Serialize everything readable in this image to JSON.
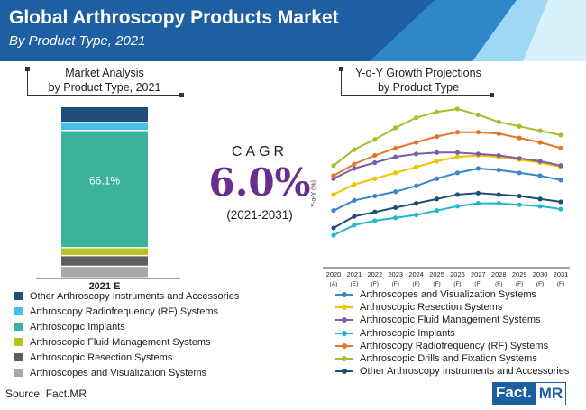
{
  "header": {
    "title": "Global Arthroscopy Products Market",
    "subtitle": "By Product Type, 2021"
  },
  "left_panel": {
    "title_line1": "Market Analysis",
    "title_line2": "by Product Type, 2021"
  },
  "cagr": {
    "label": "CAGR",
    "value": "6.0%",
    "period": "(2021-2031)"
  },
  "right_panel": {
    "title_line1": "Y-o-Y Growth Projections",
    "title_line2": "by Product Type"
  },
  "chart_data": [
    {
      "type": "bar",
      "stacked": true,
      "categories": [
        "2021 E"
      ],
      "value_label": "66.1%",
      "series": [
        {
          "name": "Arthroscopes and Visualization Systems",
          "color": "#a9a9a9",
          "values": [
            6.5
          ]
        },
        {
          "name": "Arthroscopic Resection Systems",
          "color": "#5e5e5e",
          "values": [
            6.0
          ]
        },
        {
          "name": "Arthroscopic Fluid Management Systems",
          "color": "#b8c41e",
          "values": [
            4.5
          ]
        },
        {
          "name": "Arthroscopic Implants",
          "color": "#3ab39a",
          "values": [
            66.1
          ]
        },
        {
          "name": "Arthroscopy Radiofrequency (RF) Systems",
          "color": "#45c0e8",
          "values": [
            4.5
          ]
        },
        {
          "name": "Other Arthroscopy Instruments and Accessories",
          "color": "#1f4e79",
          "values": [
            9.0
          ]
        }
      ],
      "legend_placement": "bottom"
    },
    {
      "type": "line",
      "ylabel": "Y-o-Y (%)",
      "x": [
        {
          "year": "2020",
          "tag": "(A)"
        },
        {
          "year": "2021",
          "tag": "(E)"
        },
        {
          "year": "2022",
          "tag": "(F)"
        },
        {
          "year": "2023",
          "tag": "(F)"
        },
        {
          "year": "2024",
          "tag": "(F)"
        },
        {
          "year": "2025",
          "tag": "(F)"
        },
        {
          "year": "2026",
          "tag": "(F)"
        },
        {
          "year": "2027",
          "tag": "(F)"
        },
        {
          "year": "2028",
          "tag": "(F)"
        },
        {
          "year": "2029",
          "tag": "(F)"
        },
        {
          "year": "2030",
          "tag": "(F)"
        },
        {
          "year": "2031",
          "tag": "(F)"
        }
      ],
      "ylim": [
        0,
        10
      ],
      "grid": false,
      "series": [
        {
          "name": "Arthroscopes and Visualization Systems",
          "color": "#3a86c8",
          "values": [
            3.5,
            4.2,
            4.5,
            4.8,
            5.2,
            5.7,
            6.1,
            6.4,
            6.3,
            6.1,
            5.9,
            5.6
          ]
        },
        {
          "name": "Arthroscopic Resection Systems",
          "color": "#f2c200",
          "values": [
            4.6,
            5.3,
            5.7,
            6.1,
            6.5,
            6.9,
            7.2,
            7.3,
            7.2,
            7.0,
            6.8,
            6.5
          ]
        },
        {
          "name": "Arthroscopic Fluid Management Systems",
          "color": "#7b5ea8",
          "values": [
            5.7,
            6.4,
            6.8,
            7.2,
            7.4,
            7.5,
            7.5,
            7.4,
            7.3,
            7.1,
            6.9,
            6.6
          ]
        },
        {
          "name": "Arthroscopic Implants",
          "color": "#1fb7cc",
          "values": [
            1.8,
            2.5,
            2.8,
            3.0,
            3.2,
            3.5,
            3.8,
            4.0,
            4.0,
            3.9,
            3.8,
            3.6
          ]
        },
        {
          "name": "Arthroscopy Radiofrequency (RF) Systems",
          "color": "#e8732a",
          "values": [
            5.9,
            6.7,
            7.3,
            7.8,
            8.2,
            8.6,
            8.9,
            8.9,
            8.8,
            8.5,
            8.2,
            7.8
          ]
        },
        {
          "name": "Arthroscopic Drills and Fixation Systems",
          "color": "#a8bd2a",
          "values": [
            6.6,
            7.7,
            8.4,
            9.2,
            9.9,
            10.3,
            10.5,
            10.1,
            9.6,
            9.3,
            9.0,
            8.7
          ]
        },
        {
          "name": "Other Arthroscopy Instruments and Accessories",
          "color": "#1f4e79",
          "values": [
            2.3,
            3.1,
            3.4,
            3.7,
            4.0,
            4.3,
            4.6,
            4.7,
            4.6,
            4.5,
            4.3,
            4.1
          ]
        }
      ],
      "legend_placement": "bottom"
    }
  ],
  "left_legend": [
    {
      "label": "Other Arthroscopy Instruments and Accessories",
      "color": "#1f4e79"
    },
    {
      "label": "Arthroscopy Radiofrequency (RF) Systems",
      "color": "#45c0e8"
    },
    {
      "label": "Arthroscopic Implants",
      "color": "#3ab39a"
    },
    {
      "label": "Arthroscopic Fluid Management Systems",
      "color": "#b8c41e"
    },
    {
      "label": "Arthroscopic Resection Systems",
      "color": "#5e5e5e"
    },
    {
      "label": "Arthroscopes and Visualization Systems",
      "color": "#a9a9a9"
    }
  ],
  "footer": {
    "source": "Source: Fact.MR",
    "logo_part1": "Fact.",
    "logo_part2": "MR"
  }
}
